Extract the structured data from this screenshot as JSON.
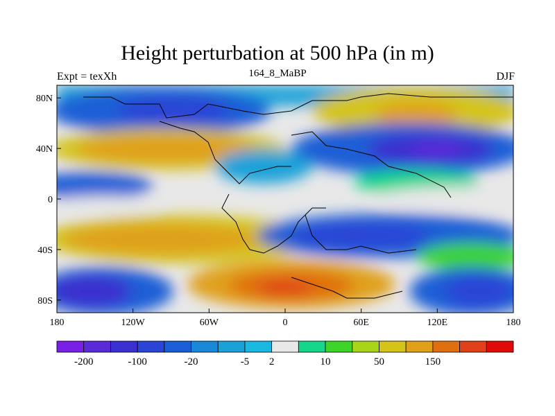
{
  "title": "Height perturbation at 500 hPa (in m)",
  "left_label": "Expt = texXh",
  "center_label": "164_8_MaBP",
  "right_label": "DJF",
  "map": {
    "projection": "cylindrical-equidistant",
    "lon_range": [
      -180,
      180
    ],
    "lat_range": [
      -90,
      90
    ],
    "x_ticks": [
      "180",
      "120W",
      "60W",
      "0",
      "60E",
      "120E",
      "180"
    ],
    "y_ticks": [
      "80N",
      "40N",
      "0",
      "40S",
      "80S"
    ],
    "y_tick_lats": [
      80,
      40,
      0,
      -40,
      -80
    ],
    "fields": [
      {
        "level": "blue",
        "lon": [
          -180,
          -60
        ],
        "lat": [
          65,
          90
        ],
        "comment": "northern polar blue trough"
      },
      {
        "level": "orange",
        "lon": [
          -180,
          -40
        ],
        "lat": [
          25,
          55
        ],
        "comment": "north atlantic/pacific ridge"
      },
      {
        "level": "yellow",
        "lon": [
          60,
          180
        ],
        "lat": [
          60,
          90
        ],
        "comment": "arctic ridge"
      },
      {
        "level": "blue",
        "lon": [
          20,
          180
        ],
        "lat": [
          20,
          60
        ],
        "comment": "asia trough"
      },
      {
        "level": "blue",
        "lon": [
          -180,
          -100
        ],
        "lat": [
          5,
          20
        ],
        "comment": "tropical pacific blue"
      },
      {
        "level": "blue",
        "lon": [
          10,
          180
        ],
        "lat": [
          -40,
          -10
        ],
        "comment": "indian ocean trough"
      },
      {
        "level": "yellow",
        "lon": [
          -180,
          20
        ],
        "lat": [
          -55,
          -5
        ],
        "comment": "southern subtropical ridge"
      },
      {
        "level": "orange",
        "lon": [
          -40,
          90
        ],
        "lat": [
          -80,
          -55
        ],
        "comment": "antarctic ridge"
      },
      {
        "level": "blue",
        "lon": [
          -180,
          -120
        ],
        "lat": [
          -90,
          -55
        ],
        "comment": "southern pacific trough"
      },
      {
        "level": "blue",
        "lon": [
          100,
          180
        ],
        "lat": [
          -90,
          -50
        ],
        "comment": "southern indian trough"
      }
    ]
  },
  "colorbar": {
    "colors": [
      "#7a1fe6",
      "#5a2ad8",
      "#3a2fcf",
      "#2a45d6",
      "#1b5fd6",
      "#1a88d8",
      "#1aa2d8",
      "#1ab8e0",
      "#e8e8e8",
      "#16d68c",
      "#3fd42a",
      "#a8d41a",
      "#d4c41a",
      "#e0a01a",
      "#e0700f",
      "#e0401a",
      "#e00a0a"
    ],
    "labels": [
      "-200",
      "-100",
      "-20",
      "-5",
      "2",
      "10",
      "50",
      "150"
    ],
    "label_after_box": [
      1,
      3,
      5,
      7,
      8,
      10,
      12,
      14
    ]
  }
}
